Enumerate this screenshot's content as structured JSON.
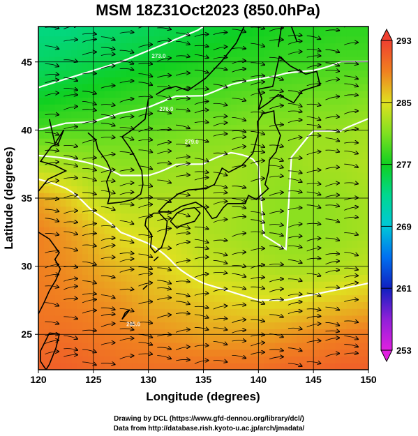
{
  "chart_data": {
    "type": "heatmap",
    "title": "MSM 18Z31Oct2023 (850.0hPa)",
    "xlabel": "Longitude (degrees)",
    "ylabel": "Latitude  (degrees)",
    "xlim": [
      120,
      150
    ],
    "ylim": [
      22.4,
      47.6
    ],
    "x_ticks": [
      "120",
      "125",
      "130",
      "135",
      "140",
      "145",
      "150"
    ],
    "y_ticks": [
      "25",
      "30",
      "35",
      "40",
      "45"
    ],
    "grid": true,
    "colorbar": {
      "range": [
        253,
        293
      ],
      "labels": [
        "293",
        "285",
        "277",
        "269",
        "261",
        "253"
      ],
      "stops": [
        {
          "value": 253,
          "color": "#e020e0"
        },
        {
          "value": 257,
          "color": "#9020d8"
        },
        {
          "value": 261,
          "color": "#1020c0"
        },
        {
          "value": 265,
          "color": "#0070f0"
        },
        {
          "value": 269,
          "color": "#00c8d8"
        },
        {
          "value": 273,
          "color": "#00d890"
        },
        {
          "value": 277,
          "color": "#10d020"
        },
        {
          "value": 281,
          "color": "#80e020"
        },
        {
          "value": 285,
          "color": "#e0e020"
        },
        {
          "value": 289,
          "color": "#f08020"
        },
        {
          "value": 293,
          "color": "#f04030"
        }
      ]
    },
    "field": {
      "lon_step": 2.5,
      "lat_step": 2.5,
      "lons": [
        120,
        122.5,
        125,
        127.5,
        130,
        132.5,
        135,
        137.5,
        140,
        142.5,
        145,
        147.5,
        150
      ],
      "lats": [
        47.5,
        45,
        42.5,
        40,
        37.5,
        35,
        32.5,
        30,
        27.5,
        25,
        22.5
      ],
      "temperature_K": [
        [
          273.5,
          273.5,
          274,
          274.5,
          275,
          275.5,
          276,
          276.5,
          277,
          277.5,
          277.5,
          278,
          278
        ],
        [
          274.5,
          275,
          275.5,
          276,
          276.5,
          277,
          277.5,
          278,
          278,
          278.5,
          278.5,
          279,
          279
        ],
        [
          276.5,
          277,
          277.5,
          278,
          278.5,
          279,
          279,
          279.5,
          280,
          280,
          280.5,
          280.5,
          281
        ],
        [
          279,
          279.5,
          279.5,
          280,
          280,
          280.5,
          281,
          281,
          281.5,
          281.5,
          282,
          282,
          282.5
        ],
        [
          283,
          282.5,
          282,
          281.5,
          281.5,
          282,
          282,
          282.5,
          282,
          282,
          282.5,
          282.5,
          283
        ],
        [
          287.5,
          286,
          284,
          283,
          283,
          283,
          283,
          282.5,
          282,
          281.5,
          281.5,
          282,
          282.5
        ],
        [
          289,
          288,
          286.5,
          285,
          284.5,
          284,
          283,
          282.5,
          282,
          281.5,
          281.5,
          282,
          282.5
        ],
        [
          289,
          288.5,
          287.5,
          286.5,
          286,
          285,
          284,
          283.5,
          283,
          282.5,
          282.5,
          283,
          283.5
        ],
        [
          289.5,
          289,
          288.5,
          288,
          287,
          286.5,
          286,
          285.5,
          285,
          285,
          285.5,
          286,
          286.5
        ],
        [
          290,
          290,
          289.5,
          289,
          288.5,
          288,
          287.5,
          287.5,
          287.5,
          288,
          288.5,
          289,
          289.5
        ],
        [
          291,
          291,
          290.5,
          290,
          290,
          290,
          290,
          290,
          290,
          290.5,
          290.5,
          291,
          291
        ]
      ]
    },
    "contours": [
      {
        "label": "273.0",
        "lon": 130.3,
        "lat": 45.3
      },
      {
        "label": "276.0",
        "lon": 131.0,
        "lat": 41.4
      },
      {
        "label": "279.0",
        "lon": 133.3,
        "lat": 39.0
      },
      {
        "label": "285.0",
        "lon": 128.0,
        "lat": 25.6
      }
    ],
    "wind": {
      "description_note": "streamlines, mostly westerly",
      "flow": "westerly"
    }
  },
  "credits": {
    "line1": "Drawing by DCL (https://www.gfd-dennou.org/library/dcl/)",
    "line2": "Data from http://database.rish.kyoto-u.ac.jp/arch/jmadata/"
  }
}
